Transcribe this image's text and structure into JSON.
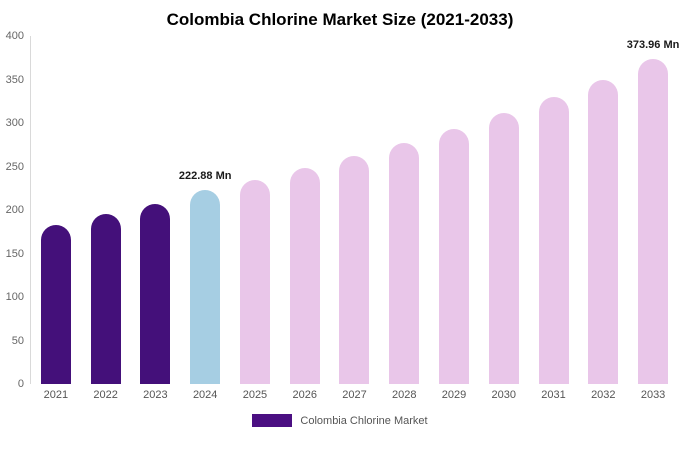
{
  "chart_data": {
    "type": "bar",
    "title": "Colombia Chlorine Market Size (2021-2033)",
    "xlabel": "",
    "ylabel": "",
    "unit": "Mn",
    "categories": [
      "2021",
      "2022",
      "2023",
      "2024",
      "2025",
      "2026",
      "2027",
      "2028",
      "2029",
      "2030",
      "2031",
      "2032",
      "2033"
    ],
    "values": [
      183,
      195,
      207,
      222.88,
      234,
      248,
      262,
      277,
      293,
      311,
      330,
      350,
      373.96
    ],
    "ylim": [
      0,
      400
    ],
    "yticks": [
      0,
      50,
      100,
      150,
      200,
      250,
      300,
      350,
      400
    ],
    "grid": false,
    "bar_labels": {
      "3": "222.88 Mn",
      "12": "373.96 Mn"
    },
    "color_roles": [
      "historical",
      "historical",
      "historical",
      "current",
      "forecast",
      "forecast",
      "forecast",
      "forecast",
      "forecast",
      "forecast",
      "forecast",
      "forecast",
      "forecast"
    ],
    "colors": {
      "historical": "#44107a",
      "current": "#a6cee3",
      "forecast": "#e9c6e9"
    },
    "legend_position": "bottom",
    "legend": [
      {
        "label": "Colombia Chlorine Market",
        "color": "#4b0f82"
      }
    ]
  }
}
